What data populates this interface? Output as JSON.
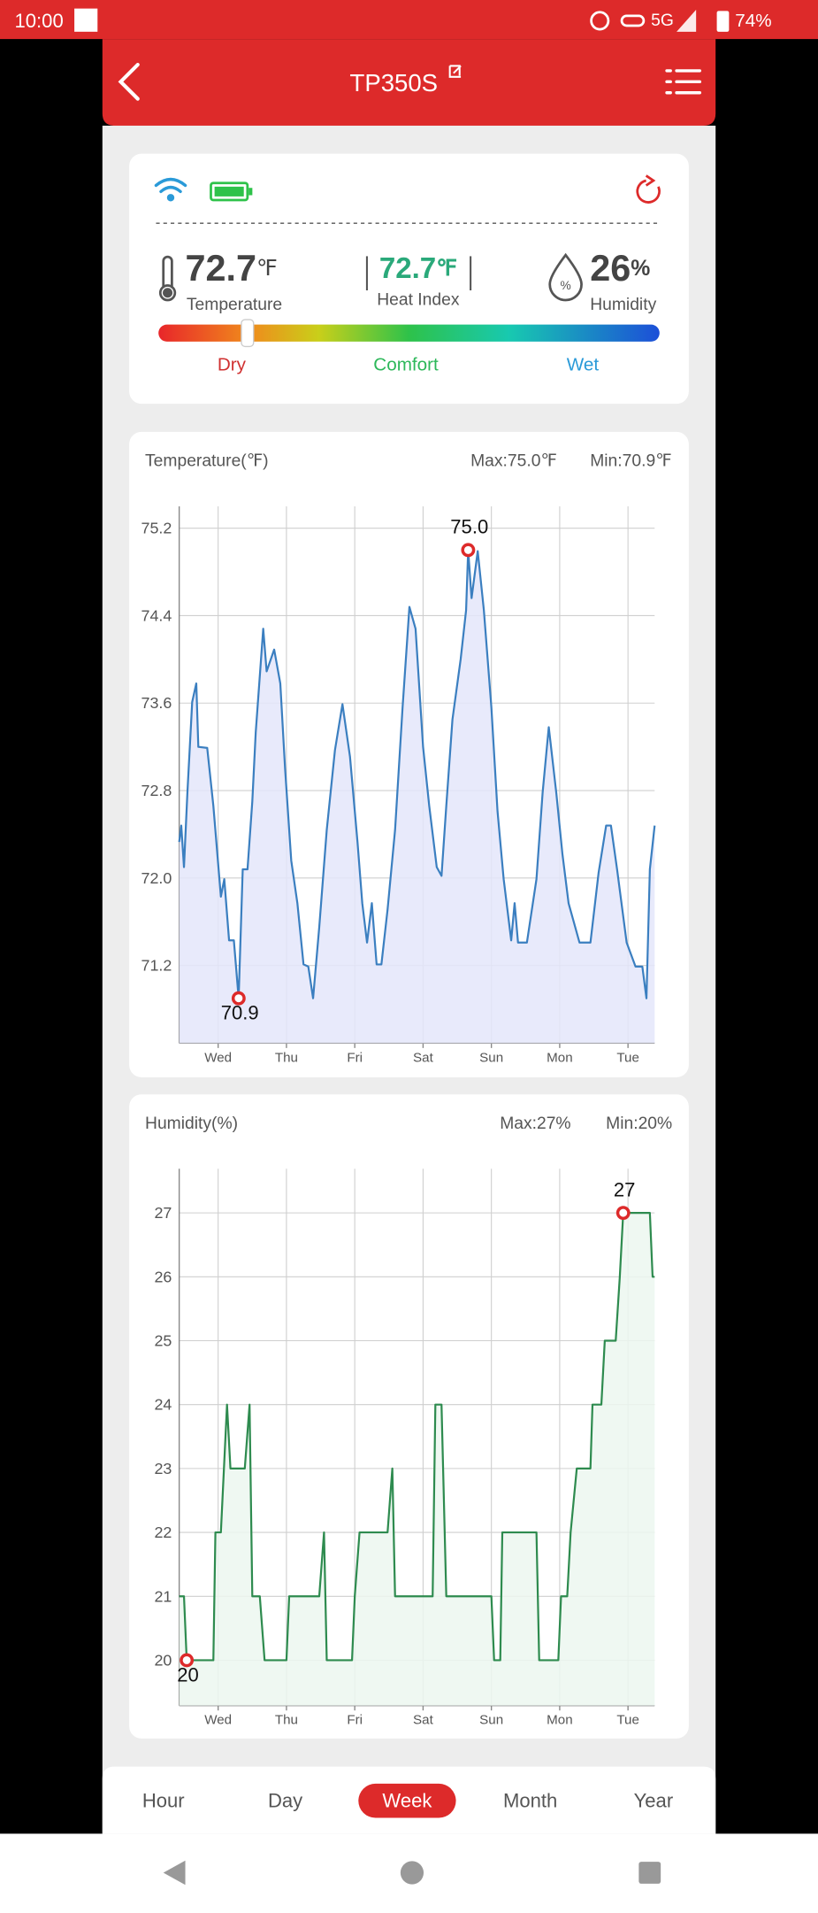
{
  "status_bar": {
    "time": "10:00",
    "network": "5G",
    "battery": "74%"
  },
  "header": {
    "title": "TP350S"
  },
  "current": {
    "temperature": "72.7",
    "temperature_unit": "℉",
    "temperature_label": "Temperature",
    "heat_index": "72.7",
    "heat_index_unit": "℉",
    "heat_index_label": "Heat Index",
    "humidity": "26",
    "humidity_unit": "%",
    "humidity_label": "Humidity",
    "scale_labels": [
      "Dry",
      "Comfort",
      "Wet"
    ]
  },
  "chart_data": [
    {
      "type": "line",
      "title": "Temperature(℉)",
      "max_label": "Max:75.0℉",
      "min_label": "Min:70.9℉",
      "xlim": [
        -0.57,
        6.39
      ],
      "xticks": [
        {
          "value": 0,
          "label": "Wed"
        },
        {
          "value": 1,
          "label": "Thu"
        },
        {
          "value": 2,
          "label": "Fri"
        },
        {
          "value": 3,
          "label": "Sat"
        },
        {
          "value": 4,
          "label": "Sun"
        },
        {
          "value": 5,
          "label": "Mon"
        },
        {
          "value": 6,
          "label": "Tue"
        }
      ],
      "ylim": [
        70.49,
        75.4
      ],
      "yticks": [
        71.2,
        {
          "value": 72,
          "label": "72.0"
        },
        72.8,
        73.6,
        74.4,
        75.2
      ],
      "grid": true,
      "series": [
        {
          "name": "Temperature",
          "color": "#3b7fc0",
          "fill": "#e4e6fa",
          "x": [
            -0.57,
            -0.54,
            -0.5,
            -0.45,
            -0.38,
            -0.32,
            -0.29,
            -0.16,
            -0.07,
            0.04,
            0.09,
            0.16,
            0.23,
            0.3,
            0.36,
            0.43,
            0.5,
            0.55,
            0.66,
            0.71,
            0.82,
            0.91,
            0.98,
            1.07,
            1.16,
            1.25,
            1.32,
            1.39,
            1.48,
            1.59,
            1.71,
            1.82,
            1.93,
            2.04,
            2.11,
            2.18,
            2.25,
            2.32,
            2.39,
            2.48,
            2.59,
            2.7,
            2.8,
            2.89,
            3.0,
            3.09,
            3.2,
            3.27,
            3.34,
            3.43,
            3.55,
            3.63,
            3.66,
            3.71,
            3.8,
            3.89,
            4.0,
            4.09,
            4.18,
            4.29,
            4.34,
            4.39,
            4.52,
            4.66,
            4.75,
            4.84,
            4.95,
            5.04,
            5.13,
            5.29,
            5.45,
            5.57,
            5.68,
            5.75,
            5.84,
            5.98,
            6.11,
            6.21,
            6.27,
            6.32,
            6.39
          ],
          "values": [
            72.33,
            72.48,
            72.1,
            72.78,
            73.61,
            73.78,
            73.2,
            73.19,
            72.66,
            71.83,
            71.99,
            71.43,
            71.43,
            70.9,
            72.08,
            72.08,
            72.7,
            73.33,
            74.28,
            73.89,
            74.09,
            73.78,
            73.0,
            72.16,
            71.77,
            71.21,
            71.19,
            70.9,
            71.55,
            72.44,
            73.17,
            73.59,
            73.11,
            72.33,
            71.77,
            71.41,
            71.77,
            71.21,
            71.21,
            71.71,
            72.44,
            73.56,
            74.48,
            74.28,
            73.2,
            72.66,
            72.1,
            72.02,
            72.66,
            73.45,
            74.0,
            74.45,
            75.0,
            74.56,
            74.99,
            74.45,
            73.56,
            72.61,
            71.99,
            71.43,
            71.77,
            71.41,
            71.41,
            71.99,
            72.78,
            73.38,
            72.78,
            72.22,
            71.77,
            71.41,
            71.41,
            72.05,
            72.48,
            72.48,
            72.08,
            71.41,
            71.19,
            71.19,
            70.9,
            72.08,
            72.48
          ]
        }
      ],
      "annotations": [
        {
          "x": 3.66,
          "value": 75,
          "label": "75.0",
          "position": "above"
        },
        {
          "x": 0.3,
          "value": 70.9,
          "label": "70.9",
          "position": "below"
        }
      ]
    },
    {
      "type": "line",
      "title": "Humidity(%)",
      "max_label": "Max:27%",
      "min_label": "Min:20%",
      "xlim": [
        -0.57,
        6.39
      ],
      "xticks": [
        {
          "value": 0,
          "label": "Wed"
        },
        {
          "value": 1,
          "label": "Thu"
        },
        {
          "value": 2,
          "label": "Fri"
        },
        {
          "value": 3,
          "label": "Sat"
        },
        {
          "value": 4,
          "label": "Sun"
        },
        {
          "value": 5,
          "label": "Mon"
        },
        {
          "value": 6,
          "label": "Tue"
        }
      ],
      "ylim": [
        19.29,
        27.69
      ],
      "yticks": [
        20,
        21,
        22,
        23,
        24,
        25,
        26,
        27
      ],
      "grid": true,
      "series": [
        {
          "name": "Humidity",
          "color": "#2e8b4f",
          "fill": "#ecf7f0",
          "x": [
            -0.57,
            -0.5,
            -0.46,
            -0.07,
            -0.04,
            0.04,
            0.13,
            0.18,
            0.39,
            0.46,
            0.5,
            0.61,
            0.68,
            1.0,
            1.04,
            1.48,
            1.55,
            1.59,
            1.96,
            2.0,
            2.07,
            2.48,
            2.55,
            2.59,
            3.14,
            3.18,
            3.27,
            3.34,
            4.0,
            4.04,
            4.13,
            4.16,
            4.66,
            4.7,
            4.98,
            5.02,
            5.11,
            5.16,
            5.25,
            5.45,
            5.48,
            5.61,
            5.66,
            5.82,
            5.88,
            5.93,
            6.32,
            6.36,
            6.39
          ],
          "values": [
            21,
            21,
            20,
            20,
            22,
            22,
            24,
            23,
            23,
            24,
            21,
            21,
            20,
            20,
            21,
            21,
            22,
            20,
            20,
            21,
            22,
            22,
            23,
            21,
            21,
            24,
            24,
            21,
            21,
            20,
            20,
            22,
            22,
            20,
            20,
            21,
            21,
            22,
            23,
            23,
            24,
            24,
            25,
            25,
            26,
            27,
            27,
            26,
            26
          ]
        }
      ],
      "annotations": [
        {
          "x": 5.93,
          "value": 27,
          "label": "27",
          "position": "above"
        },
        {
          "x": -0.46,
          "value": 20,
          "label": "20",
          "position": "below"
        }
      ]
    }
  ],
  "tabs": {
    "items": [
      "Hour",
      "Day",
      "Week",
      "Month",
      "Year"
    ],
    "selected": 2
  }
}
